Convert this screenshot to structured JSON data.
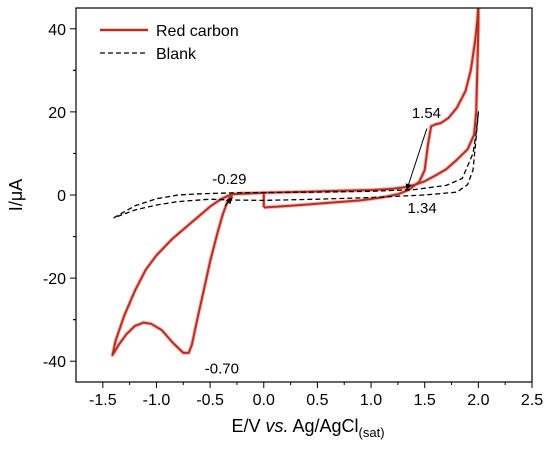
{
  "chart_data": {
    "type": "line",
    "xlabel": "E/V vs. Ag/AgCl",
    "xlabel_parts": {
      "main": "E/V ",
      "italic": "vs.",
      "rest": " Ag/AgCl",
      "subscript": "(sat)"
    },
    "ylabel": "I/μA",
    "xlim": [
      -1.75,
      2.5
    ],
    "ylim": [
      -45,
      45
    ],
    "xticks": [
      -1.5,
      -1.0,
      -0.5,
      0.0,
      0.5,
      1.0,
      1.5,
      2.0,
      2.5
    ],
    "xtick_labels": [
      "-1.5",
      "-1.0",
      "-0.5",
      "0.0",
      "0.5",
      "1.0",
      "1.5",
      "2.0",
      "2.5"
    ],
    "yticks": [
      -40,
      -20,
      0,
      20,
      40
    ],
    "ytick_labels": [
      "-40",
      "-20",
      "0",
      "20",
      "40"
    ],
    "grid": false,
    "legend_position": "top-left",
    "series": [
      {
        "name": "Red carbon",
        "color": "#b5301f",
        "style": "solid",
        "points": [
          [
            0.0,
            -3.0
          ],
          [
            0.3,
            -2.5
          ],
          [
            0.6,
            -1.9
          ],
          [
            0.9,
            -1.3
          ],
          [
            1.1,
            -0.6
          ],
          [
            1.25,
            0.2
          ],
          [
            1.35,
            1.2
          ],
          [
            1.45,
            3.2
          ],
          [
            1.5,
            6.0
          ],
          [
            1.53,
            12.0
          ],
          [
            1.56,
            16.5
          ],
          [
            1.6,
            17.0
          ],
          [
            1.65,
            17.3
          ],
          [
            1.72,
            18.5
          ],
          [
            1.8,
            21.0
          ],
          [
            1.88,
            25.0
          ],
          [
            1.93,
            30.0
          ],
          [
            1.97,
            37.0
          ],
          [
            1.99,
            42.0
          ],
          [
            2.0,
            46.0
          ],
          [
            2.0,
            41.0
          ],
          [
            1.99,
            30.0
          ],
          [
            1.98,
            20.0
          ],
          [
            1.96,
            14.5
          ],
          [
            1.9,
            11.0
          ],
          [
            1.8,
            8.5
          ],
          [
            1.7,
            6.2
          ],
          [
            1.6,
            4.7
          ],
          [
            1.5,
            3.3
          ],
          [
            1.4,
            2.4
          ],
          [
            1.3,
            1.8
          ],
          [
            1.2,
            1.5
          ],
          [
            1.0,
            1.2
          ],
          [
            0.7,
            1.0
          ],
          [
            0.4,
            0.8
          ],
          [
            0.1,
            0.6
          ],
          [
            -0.2,
            0.4
          ],
          [
            -0.29,
            0.2
          ],
          [
            -0.33,
            -1.0
          ],
          [
            -0.38,
            -4.5
          ],
          [
            -0.43,
            -9.0
          ],
          [
            -0.5,
            -16.0
          ],
          [
            -0.56,
            -23.0
          ],
          [
            -0.62,
            -30.0
          ],
          [
            -0.67,
            -36.0
          ],
          [
            -0.7,
            -38.0
          ],
          [
            -0.75,
            -38.0
          ],
          [
            -0.85,
            -35.5
          ],
          [
            -0.95,
            -32.5
          ],
          [
            -1.05,
            -31.0
          ],
          [
            -1.12,
            -30.7
          ],
          [
            -1.2,
            -31.5
          ],
          [
            -1.28,
            -33.5
          ],
          [
            -1.35,
            -36.0
          ],
          [
            -1.41,
            -38.5
          ],
          [
            -1.38,
            -35.0
          ],
          [
            -1.3,
            -29.0
          ],
          [
            -1.2,
            -23.0
          ],
          [
            -1.1,
            -18.0
          ],
          [
            -1.0,
            -14.5
          ],
          [
            -0.85,
            -10.5
          ],
          [
            -0.7,
            -7.2
          ],
          [
            -0.6,
            -5.0
          ],
          [
            -0.5,
            -2.8
          ],
          [
            -0.4,
            -1.0
          ],
          [
            -0.3,
            0.2
          ],
          [
            -0.2,
            0.3
          ],
          [
            0.0,
            0.5
          ],
          [
            0.0,
            -3.0
          ]
        ]
      },
      {
        "name": "Blank",
        "color": "#000000",
        "style": "dashed",
        "points": [
          [
            -1.4,
            -5.5
          ],
          [
            -1.2,
            -2.6
          ],
          [
            -1.0,
            -0.9
          ],
          [
            -0.8,
            0.0
          ],
          [
            -0.6,
            0.3
          ],
          [
            -0.3,
            0.5
          ],
          [
            0.0,
            0.6
          ],
          [
            0.5,
            0.7
          ],
          [
            1.0,
            0.9
          ],
          [
            1.4,
            1.3
          ],
          [
            1.7,
            2.3
          ],
          [
            1.85,
            4.0
          ],
          [
            1.95,
            10.0
          ],
          [
            1.98,
            15.0
          ],
          [
            2.0,
            20.0
          ],
          [
            1.98,
            14.0
          ],
          [
            1.95,
            6.0
          ],
          [
            1.9,
            2.5
          ],
          [
            1.8,
            0.7
          ],
          [
            1.5,
            0.0
          ],
          [
            1.0,
            -0.6
          ],
          [
            0.5,
            -1.0
          ],
          [
            0.0,
            -1.3
          ],
          [
            -0.3,
            -1.2
          ],
          [
            -0.5,
            -1.0
          ],
          [
            -0.8,
            -1.6
          ],
          [
            -1.0,
            -2.4
          ],
          [
            -1.2,
            -3.6
          ],
          [
            -1.4,
            -5.5
          ]
        ]
      }
    ],
    "annotations": [
      {
        "text": "1.54",
        "x": 1.38,
        "y": 18.5
      },
      {
        "text": "1.34",
        "x": 1.34,
        "y": -4.3
      },
      {
        "text": "-0.29",
        "x": -0.48,
        "y": 2.6
      },
      {
        "text": "-0.70",
        "x": -0.55,
        "y": -43.0
      }
    ],
    "arrows": [
      {
        "from": [
          1.52,
          16.0
        ],
        "to": [
          1.33,
          1.0
        ]
      },
      {
        "from": [
          -0.36,
          -2.6
        ],
        "to": [
          -0.29,
          -0.5
        ]
      }
    ]
  }
}
